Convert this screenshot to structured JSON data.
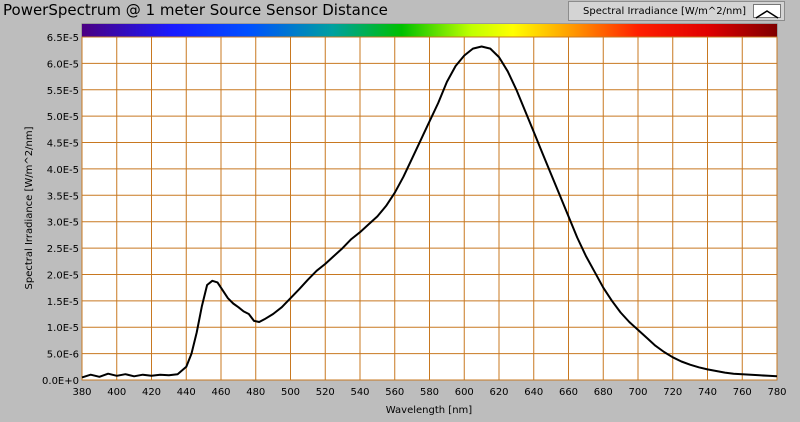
{
  "title": "PowerSpectrum @ 1 meter Source Sensor Distance",
  "legend": {
    "label": "Spectral Irradiance [W/m^2/nm]",
    "icon": "line-swatch-icon"
  },
  "colors": {
    "background": "#bdbdbd",
    "plot": "#ffffff",
    "grid": "#c87820",
    "curve": "#000000"
  },
  "chart_data": {
    "type": "line",
    "xlabel": "Wavelength [nm]",
    "ylabel": "Spectral Irradiance [W/m^2/nm]",
    "xlim": [
      380,
      780
    ],
    "ylim": [
      0,
      6.5e-05
    ],
    "x_ticks": [
      380,
      400,
      420,
      440,
      460,
      480,
      500,
      520,
      540,
      560,
      580,
      600,
      620,
      640,
      660,
      680,
      700,
      720,
      740,
      760,
      780
    ],
    "y_ticks": [
      0,
      5e-06,
      1e-05,
      1.5e-05,
      2e-05,
      2.5e-05,
      3e-05,
      3.5e-05,
      4e-05,
      4.5e-05,
      5e-05,
      5.5e-05,
      6e-05,
      6.5e-05
    ],
    "y_tick_labels": [
      "0.0E+0",
      "5.0E-6",
      "1.0E-5",
      "1.5E-5",
      "2.0E-5",
      "2.5E-5",
      "3.0E-5",
      "3.5E-5",
      "4.0E-5",
      "4.5E-5",
      "5.0E-5",
      "5.5E-5",
      "6.0E-5",
      "6.5E-5"
    ],
    "grid": true,
    "color_band": "visible spectrum gradient above plot",
    "series": [
      {
        "name": "Spectral Irradiance [W/m^2/nm]",
        "x": [
          380,
          385,
          390,
          395,
          400,
          405,
          410,
          415,
          420,
          425,
          430,
          435,
          440,
          443,
          446,
          449,
          452,
          455,
          458,
          461,
          464,
          467,
          470,
          473,
          476,
          479,
          482,
          485,
          490,
          495,
          500,
          505,
          510,
          515,
          520,
          525,
          530,
          535,
          540,
          545,
          550,
          555,
          560,
          565,
          570,
          575,
          580,
          585,
          590,
          595,
          600,
          605,
          610,
          615,
          620,
          625,
          630,
          635,
          640,
          645,
          650,
          655,
          660,
          665,
          670,
          675,
          680,
          685,
          690,
          695,
          700,
          705,
          710,
          715,
          720,
          725,
          730,
          735,
          740,
          745,
          750,
          755,
          760,
          765,
          770,
          775,
          780
        ],
        "values": [
          5e-07,
          1e-06,
          6e-07,
          1.2e-06,
          8e-07,
          1.1e-06,
          7e-07,
          1e-06,
          8e-07,
          1e-06,
          9e-07,
          1.1e-06,
          2.5e-06,
          5e-06,
          9e-06,
          1.4e-05,
          1.8e-05,
          1.88e-05,
          1.85e-05,
          1.7e-05,
          1.55e-05,
          1.45e-05,
          1.38e-05,
          1.3e-05,
          1.25e-05,
          1.12e-05,
          1.1e-05,
          1.15e-05,
          1.25e-05,
          1.38e-05,
          1.55e-05,
          1.72e-05,
          1.9e-05,
          2.07e-05,
          2.2e-05,
          2.35e-05,
          2.5e-05,
          2.67e-05,
          2.8e-05,
          2.95e-05,
          3.1e-05,
          3.3e-05,
          3.55e-05,
          3.85e-05,
          4.2e-05,
          4.55e-05,
          4.9e-05,
          5.25e-05,
          5.65e-05,
          5.95e-05,
          6.15e-05,
          6.28e-05,
          6.32e-05,
          6.28e-05,
          6.12e-05,
          5.85e-05,
          5.5e-05,
          5.1e-05,
          4.7e-05,
          4.3e-05,
          3.9e-05,
          3.5e-05,
          3.1e-05,
          2.7e-05,
          2.35e-05,
          2.05e-05,
          1.75e-05,
          1.5e-05,
          1.28e-05,
          1.1e-05,
          9.5e-06,
          8e-06,
          6.5e-06,
          5.3e-06,
          4.3e-06,
          3.5e-06,
          2.9e-06,
          2.4e-06,
          2e-06,
          1.7e-06,
          1.4e-06,
          1.2e-06,
          1.1e-06,
          1e-06,
          9e-07,
          8e-07,
          7e-07
        ]
      }
    ]
  }
}
